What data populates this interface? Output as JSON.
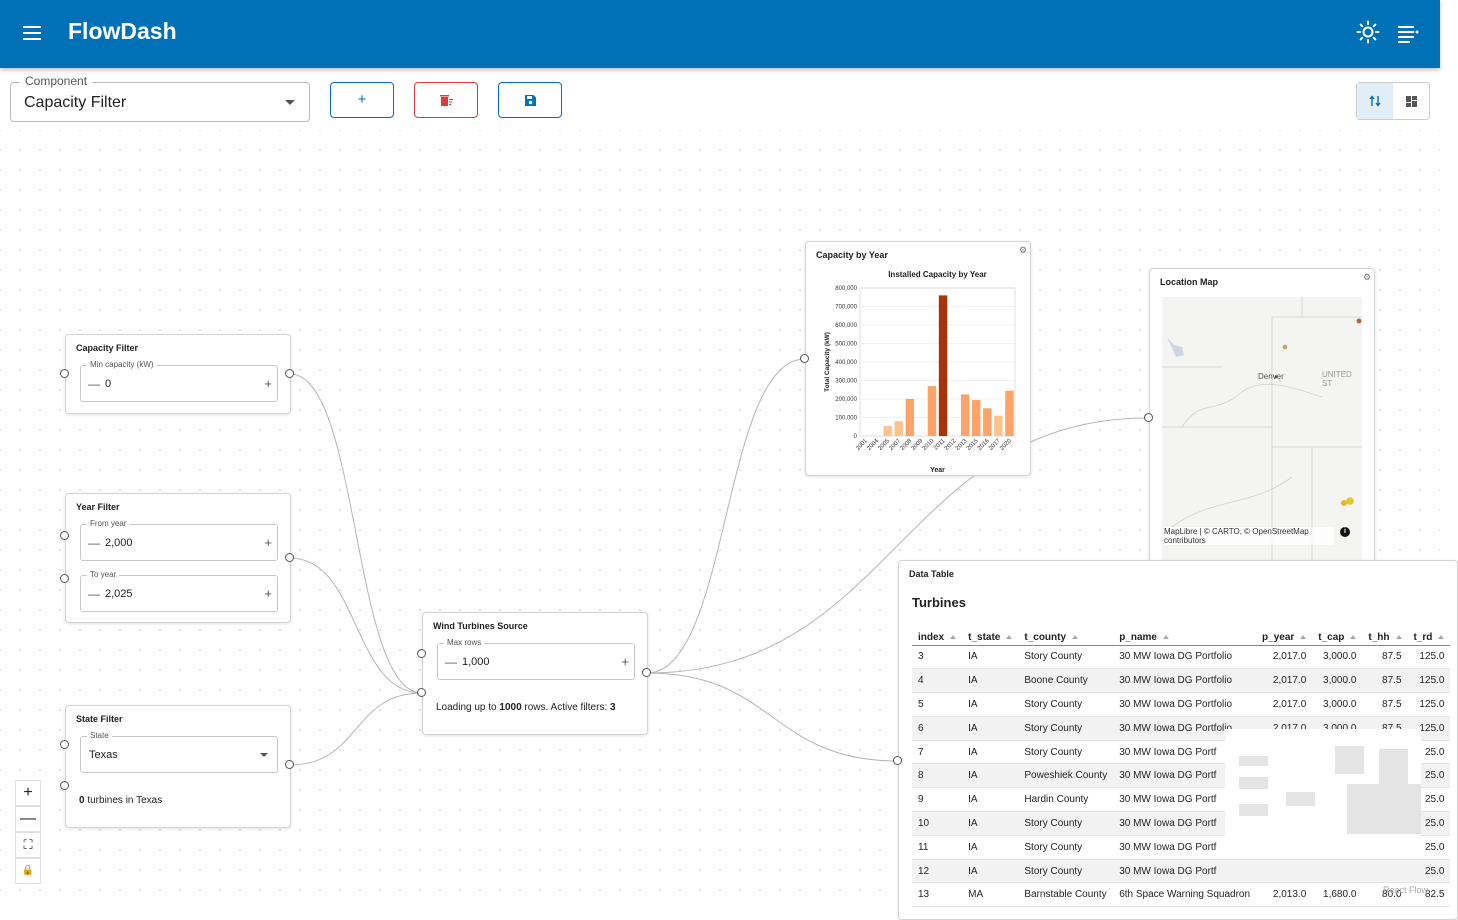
{
  "app": {
    "title": "FlowDash"
  },
  "toolbar": {
    "component_legend": "Component",
    "component_value": "Capacity Filter",
    "add_glyph": "+",
    "delete_glyph": "🗑",
    "save_glyph": "💾"
  },
  "colors": {
    "appbar": "#0071b7",
    "bar_light": "#fdc38d",
    "bar_mid": "#fca36a",
    "bar_dark": "#a93208"
  },
  "nodes": {
    "capacity_filter": {
      "title": "Capacity Filter",
      "field_label": "Min capacity (kW)",
      "value": "0"
    },
    "year_filter": {
      "title": "Year Filter",
      "from_label": "From year",
      "from_value": "2,000",
      "to_label": "To year",
      "to_value": "2,025"
    },
    "state_filter": {
      "title": "State Filter",
      "state_label": "State",
      "state_value": "Texas",
      "summary_count": "0",
      "summary_text": "turbines in Texas"
    },
    "source": {
      "title": "Wind Turbines Source",
      "rows_label": "Max rows",
      "rows_value": "1,000",
      "status_prefix": "Loading up to ",
      "status_rows": "1000",
      "status_mid": " rows. Active filters: ",
      "status_filters": "3"
    },
    "chart": {
      "title": "Capacity by Year"
    },
    "map": {
      "title": "Location Map",
      "city": "Denver",
      "country": "UNITED ST",
      "attribution": "MapLibre | © CARTO, © OpenStreetMap contributors"
    },
    "table": {
      "node_title": "Data Table",
      "heading": "Turbines"
    }
  },
  "chart_data": {
    "type": "bar",
    "title": "Installed Capacity by Year",
    "xlabel": "Year",
    "ylabel": "Total Capacity (kW)",
    "ylim": [
      0,
      800000
    ],
    "yticks": [
      "0",
      "100,000",
      "200,000",
      "300,000",
      "400,000",
      "500,000",
      "600,000",
      "700,000",
      "800,000"
    ],
    "categories": [
      "2001",
      "2004",
      "2005",
      "2007",
      "2008",
      "2009",
      "2010",
      "2011",
      "2012",
      "2013",
      "2015",
      "2016",
      "2017",
      "2020"
    ],
    "values": [
      0,
      0,
      55000,
      80000,
      200000,
      0,
      270000,
      760000,
      0,
      225000,
      195000,
      150000,
      110000,
      245000
    ]
  },
  "table": {
    "columns": [
      "index",
      "t_state",
      "t_county",
      "p_name",
      "p_year",
      "t_cap",
      "t_hh",
      "t_rd"
    ],
    "rows": [
      [
        "3",
        "IA",
        "Story County",
        "30 MW Iowa DG Portfolio",
        "2,017.0",
        "3,000.0",
        "87.5",
        "125.0"
      ],
      [
        "4",
        "IA",
        "Boone County",
        "30 MW Iowa DG Portfolio",
        "2,017.0",
        "3,000.0",
        "87.5",
        "125.0"
      ],
      [
        "5",
        "IA",
        "Story County",
        "30 MW Iowa DG Portfolio",
        "2,017.0",
        "3,000.0",
        "87.5",
        "125.0"
      ],
      [
        "6",
        "IA",
        "Story County",
        "30 MW Iowa DG Portfolio",
        "2,017.0",
        "3,000.0",
        "87.5",
        "125.0"
      ],
      [
        "7",
        "IA",
        "Story County",
        "30 MW Iowa DG Portf",
        "",
        "",
        "",
        "25.0"
      ],
      [
        "8",
        "IA",
        "Poweshiek County",
        "30 MW Iowa DG Portf",
        "",
        "",
        "",
        "25.0"
      ],
      [
        "9",
        "IA",
        "Hardin County",
        "30 MW Iowa DG Portf",
        "",
        "",
        "",
        "25.0"
      ],
      [
        "10",
        "IA",
        "Story County",
        "30 MW Iowa DG Portf",
        "",
        "",
        "",
        "25.0"
      ],
      [
        "11",
        "IA",
        "Story County",
        "30 MW Iowa DG Portf",
        "",
        "",
        "",
        "25.0"
      ],
      [
        "12",
        "IA",
        "Story County",
        "30 MW Iowa DG Portf",
        "",
        "",
        "",
        "25.0"
      ],
      [
        "13",
        "MA",
        "Barnstable County",
        "6th Space Warning Squadron",
        "2,013.0",
        "1,680.0",
        "80.0",
        "82.5"
      ]
    ]
  },
  "controls": {
    "zoom_in": "+",
    "zoom_out": "—",
    "fit": "⛶",
    "lock": "🔒"
  },
  "watermark": "React Flow"
}
